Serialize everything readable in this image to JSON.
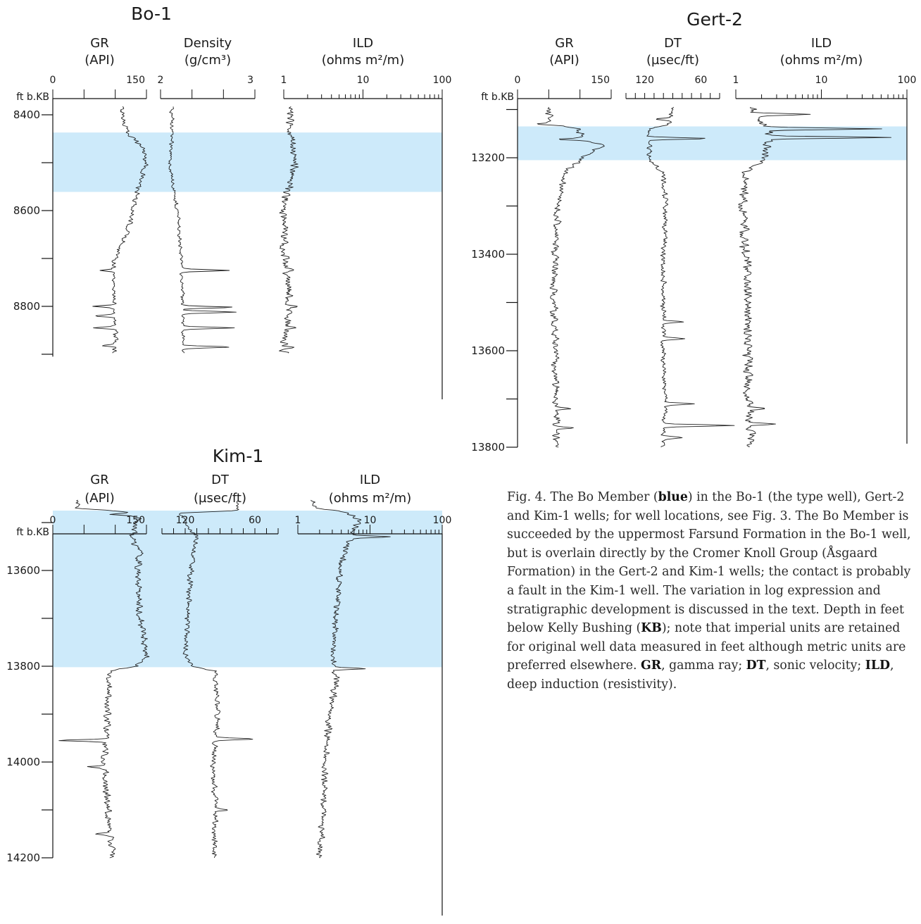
{
  "page": {
    "figure_number": "Fig. 4.",
    "zone_color": "#cdeafa",
    "curve_color": "#222222"
  },
  "chart_data": [
    {
      "type": "line",
      "title": "Bo-1",
      "depth_axis": {
        "label": "ft b.KB",
        "range": [
          8370,
          8905
        ],
        "ticks": [
          8400,
          8500,
          8600,
          8700,
          8800,
          8900
        ],
        "tick_labels": [
          "8400",
          "",
          "8600",
          "",
          "8800",
          ""
        ]
      },
      "highlight_zone": {
        "top": 8437,
        "bottom": 8561
      },
      "tracks": [
        {
          "name": "GR",
          "unit": "(API)",
          "scale": "linear",
          "range": [
            0,
            150
          ],
          "tick_labels": [
            "0",
            "150"
          ],
          "profile": [
            [
              8383,
              110
            ],
            [
              8420,
              115
            ],
            [
              8437,
              120
            ],
            [
              8470,
              145
            ],
            [
              8500,
              150
            ],
            [
              8530,
              142
            ],
            [
              8561,
              135
            ],
            [
              8600,
              128
            ],
            [
              8650,
              118
            ],
            [
              8700,
              100
            ],
            [
              8730,
              98
            ],
            [
              8800,
              98
            ],
            [
              8850,
              100
            ],
            [
              8898,
              100
            ]
          ],
          "spikes": [
            [
              8725,
              -25
            ],
            [
              8800,
              -35
            ],
            [
              8820,
              -30
            ],
            [
              8845,
              -32
            ],
            [
              8882,
              -22
            ]
          ],
          "noise": 5
        },
        {
          "name": "Density",
          "unit": "(g/cm³)",
          "scale": "linear",
          "range": [
            2,
            3
          ],
          "tick_labels": [
            "2",
            "3"
          ],
          "profile": [
            [
              8383,
              2.12
            ],
            [
              8437,
              2.12
            ],
            [
              8500,
              2.1
            ],
            [
              8561,
              2.14
            ],
            [
              8600,
              2.18
            ],
            [
              8700,
              2.22
            ],
            [
              8800,
              2.24
            ],
            [
              8898,
              2.24
            ]
          ],
          "spikes": [
            [
              8725,
              0.5
            ],
            [
              8802,
              0.55
            ],
            [
              8812,
              0.55
            ],
            [
              8845,
              0.55
            ],
            [
              8885,
              0.5
            ]
          ],
          "noise": 0.025
        },
        {
          "name": "ILD",
          "unit": "(ohms m²/m)",
          "scale": "log",
          "range": [
            1,
            100
          ],
          "tick_labels": [
            "1",
            "10",
            "100"
          ],
          "profile": [
            [
              8383,
              1.15
            ],
            [
              8437,
              1.2
            ],
            [
              8500,
              1.4
            ],
            [
              8561,
              1.15
            ],
            [
              8600,
              0.95
            ],
            [
              8700,
              1.05
            ],
            [
              8800,
              1.2
            ],
            [
              8898,
              1.0
            ]
          ],
          "spikes": [
            [
              8725,
              0.25
            ],
            [
              8800,
              0.3
            ],
            [
              8845,
              0.2
            ],
            [
              8885,
              0.25
            ]
          ],
          "noise": 0.07,
          "log_noise": true
        }
      ]
    },
    {
      "type": "line",
      "title": "Gert-2",
      "depth_axis": {
        "label": "ft b.KB",
        "range": [
          13070,
          13810
        ],
        "ticks": [
          13100,
          13200,
          13300,
          13400,
          13500,
          13600,
          13700,
          13800
        ],
        "tick_labels": [
          "",
          "13200",
          "",
          "13400",
          "",
          "13600",
          "",
          "13800"
        ]
      },
      "highlight_zone": {
        "top": 13135,
        "bottom": 13205
      },
      "tracks": [
        {
          "name": "GR",
          "unit": "(API)",
          "scale": "linear",
          "range": [
            0,
            150
          ],
          "tick_labels": [
            "0",
            "150"
          ],
          "profile": [
            [
              13095,
              50
            ],
            [
              13130,
              52
            ],
            [
              13140,
              95
            ],
            [
              13160,
              105
            ],
            [
              13175,
              140
            ],
            [
              13190,
              115
            ],
            [
              13205,
              100
            ],
            [
              13230,
              75
            ],
            [
              13300,
              65
            ],
            [
              13400,
              60
            ],
            [
              13500,
              58
            ],
            [
              13600,
              60
            ],
            [
              13700,
              62
            ],
            [
              13800,
              62
            ]
          ],
          "spikes": [
            [
              13130,
              -20
            ],
            [
              13162,
              -45
            ],
            [
              13720,
              30
            ],
            [
              13760,
              28
            ]
          ],
          "noise": 7
        },
        {
          "name": "DT",
          "unit": "(µsec/ft)",
          "scale": "linear",
          "range": [
            140,
            40
          ],
          "tick_labels": [
            "120",
            "60"
          ],
          "profile": [
            [
              13095,
              90
            ],
            [
              13130,
              93
            ],
            [
              13140,
              115
            ],
            [
              13205,
              115
            ],
            [
              13230,
              100
            ],
            [
              13300,
              98
            ],
            [
              13400,
              100
            ],
            [
              13500,
              100
            ],
            [
              13600,
              100
            ],
            [
              13700,
              98
            ],
            [
              13800,
              100
            ]
          ],
          "spikes": [
            [
              13120,
              18
            ],
            [
              13160,
              -65
            ],
            [
              13540,
              -22
            ],
            [
              13575,
              -25
            ],
            [
              13710,
              -30
            ],
            [
              13755,
              -75
            ],
            [
              13780,
              -20
            ]
          ],
          "noise": 3.5
        },
        {
          "name": "ILD",
          "unit": "(ohms m²/m)",
          "scale": "log",
          "range": [
            1,
            100
          ],
          "tick_labels": [
            "1",
            "10",
            "100"
          ],
          "profile": [
            [
              13095,
              1.5
            ],
            [
              13120,
              1.8
            ],
            [
              13140,
              2.5
            ],
            [
              13205,
              2.2
            ],
            [
              13230,
              1.3
            ],
            [
              13300,
              1.2
            ],
            [
              13400,
              1.3
            ],
            [
              13500,
              1.4
            ],
            [
              13600,
              1.4
            ],
            [
              13700,
              1.4
            ],
            [
              13800,
              1.5
            ]
          ],
          "spikes": [
            [
              13110,
              3.5
            ],
            [
              13140,
              20
            ],
            [
              13158,
              25
            ],
            [
              13720,
              0.5
            ],
            [
              13752,
              0.9
            ]
          ],
          "noise": 0.07,
          "log_noise": true
        }
      ]
    },
    {
      "type": "line",
      "title": "Kim-1",
      "depth_axis": {
        "label": "ft b.KB",
        "range": [
          13445,
          14210
        ],
        "ticks": [
          13500,
          13600,
          13700,
          13800,
          13900,
          14000,
          14100,
          14200
        ],
        "tick_labels": [
          "",
          "13600",
          "",
          "13800",
          "",
          "14000",
          "",
          "14200"
        ]
      },
      "highlight_zone": {
        "top": 13475,
        "bottom": 13802
      },
      "tracks": [
        {
          "name": "GR",
          "unit": "(API)",
          "scale": "linear",
          "range": [
            0,
            150
          ],
          "tick_labels": [
            "0",
            "150"
          ],
          "profile": [
            [
              13453,
              40
            ],
            [
              13470,
              42
            ],
            [
              13478,
              120
            ],
            [
              13490,
              140
            ],
            [
              13530,
              125
            ],
            [
              13560,
              140
            ],
            [
              13600,
              135
            ],
            [
              13700,
              140
            ],
            [
              13780,
              150
            ],
            [
              13800,
              135
            ],
            [
              13810,
              90
            ],
            [
              13900,
              88
            ],
            [
              14000,
              82
            ],
            [
              14100,
              88
            ],
            [
              14200,
              95
            ]
          ],
          "spikes": [
            [
              13483,
              -40
            ],
            [
              13955,
              -75
            ],
            [
              14010,
              -25
            ],
            [
              14150,
              -25
            ]
          ],
          "noise": 7
        },
        {
          "name": "DT",
          "unit": "(µsec/ft)",
          "scale": "linear",
          "range": [
            140,
            40
          ],
          "tick_labels": [
            "120",
            "60"
          ],
          "profile": [
            [
              13453,
              75
            ],
            [
              13475,
              75
            ],
            [
              13480,
              125
            ],
            [
              13530,
              110
            ],
            [
              13600,
              115
            ],
            [
              13700,
              118
            ],
            [
              13780,
              120
            ],
            [
              13800,
              115
            ],
            [
              13810,
              95
            ],
            [
              13900,
              92
            ],
            [
              14000,
              96
            ],
            [
              14100,
              94
            ],
            [
              14200,
              95
            ]
          ],
          "spikes": [
            [
              13952,
              -35
            ],
            [
              14100,
              -10
            ]
          ],
          "noise": 3
        },
        {
          "name": "ILD",
          "unit": "(ohms m²/m)",
          "scale": "log",
          "range": [
            1,
            100
          ],
          "tick_labels": [
            "1",
            "10",
            "100"
          ],
          "profile": [
            [
              13453,
              1.5
            ],
            [
              13470,
              1.8
            ],
            [
              13480,
              5
            ],
            [
              13495,
              7
            ],
            [
              13530,
              5.5
            ],
            [
              13560,
              4.5
            ],
            [
              13600,
              3.8
            ],
            [
              13700,
              3.3
            ],
            [
              13800,
              3.0
            ],
            [
              13820,
              3.5
            ],
            [
              13900,
              2.7
            ],
            [
              14000,
              2.4
            ],
            [
              14100,
              2.2
            ],
            [
              14200,
              2.0
            ]
          ],
          "spikes": [
            [
              13530,
              2.5
            ],
            [
              13805,
              2.0
            ]
          ],
          "noise": 0.06,
          "log_noise": true
        }
      ]
    }
  ],
  "caption": {
    "p1": "Fig. 4. The Bo Member (",
    "b1": "blue",
    "p2": ") in the Bo-1 (the type well), Gert-2 and Kim-1 wells; for well locations, see Fig. 3. The Bo Member is succeeded by the uppermost Farsund Formation in the Bo-1 well, but is overlain directly by the Cromer Knoll Group (Åsgaard Formation) in the Gert-2 and Kim-1 wells; the contact is probably a fault in the Kim-1 well. The variation in log expression and stratigraphic development is discussed in the text. Depth in feet below Kelly Bushing (",
    "b2": "KB",
    "p3": "); note that imperial units are retained for original well data measured in feet although metric units are preferred elsewhere. ",
    "b3": "GR",
    "p4": ", gamma ray; ",
    "b4": "DT",
    "p5": ", sonic velocity; ",
    "b5": "ILD",
    "p6": ", deep induction (resistivity)."
  }
}
